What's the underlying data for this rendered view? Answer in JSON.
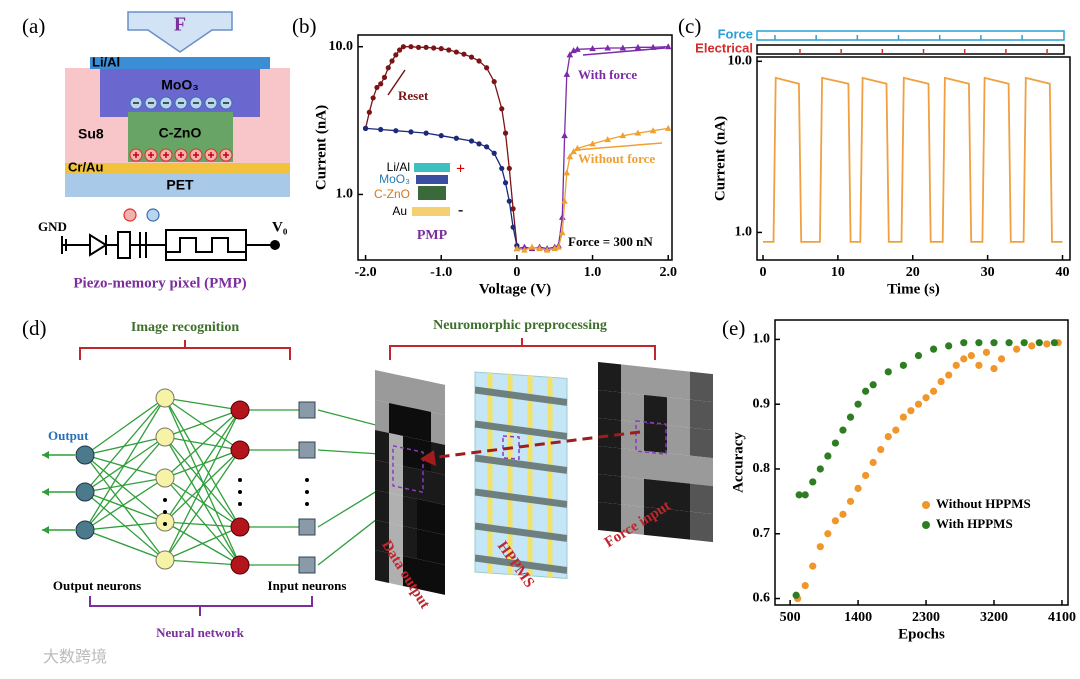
{
  "panel_labels": [
    "(a)",
    "(b)",
    "(c)",
    "(d)",
    "(e)"
  ],
  "device": {
    "force": "F",
    "layers": {
      "top_electrode": "Li/Al",
      "memory": "MoO₃",
      "insulator": "Su8",
      "piezo": "C-ZnO",
      "bottom_electrode": "Cr/Au",
      "substrate": "PET"
    },
    "circuit": {
      "ground": "GND",
      "output": "V₀"
    },
    "caption": "Piezo-memory pixel (PMP)"
  },
  "chart_data": [
    {
      "type": "line",
      "xlabel": "Voltage (V)",
      "ylabel": "Current (nA)",
      "log_y": true,
      "xlim": [
        -2.1,
        2.05
      ],
      "ylim": [
        0.36,
        12
      ],
      "xticks": [
        {
          "value": -2,
          "label": "-2.0"
        },
        {
          "value": -1,
          "label": "-1.0"
        },
        0,
        {
          "value": 1,
          "label": "1.0"
        },
        {
          "value": 2,
          "label": "2.0"
        }
      ],
      "yticks": [
        {
          "value": 1,
          "label": "1.0"
        },
        {
          "value": 10,
          "label": "10.0"
        }
      ],
      "series": [
        {
          "color": "#7b1416",
          "marker": "circle",
          "x": [
            -2,
            -1.95,
            -1.9,
            -1.85,
            -1.8,
            -1.75,
            -1.7,
            -1.65,
            -1.6,
            -1.55,
            -1.5,
            -1.4,
            -1.3,
            -1.2,
            -1.1,
            -1.0,
            -0.9,
            -0.8,
            -0.7,
            -0.6,
            -0.5,
            -0.4,
            -0.3,
            -0.2,
            -0.15,
            -0.1,
            -0.05,
            0
          ],
          "values": [
            2.8,
            3.6,
            4.5,
            5.3,
            5.6,
            6.2,
            7.2,
            8.0,
            8.8,
            9.5,
            10,
            10,
            9.9,
            9.9,
            9.8,
            9.7,
            9.5,
            9.2,
            8.9,
            8.5,
            8.0,
            7.2,
            5.8,
            3.8,
            2.6,
            1.5,
            0.8,
            0.45
          ]
        },
        {
          "color": "#1c2a7a",
          "marker": "circle",
          "x": [
            -2,
            -1.8,
            -1.6,
            -1.4,
            -1.2,
            -1.0,
            -0.8,
            -0.6,
            -0.5,
            -0.4,
            -0.3,
            -0.2,
            -0.15,
            -0.1,
            -0.05,
            0
          ],
          "values": [
            2.8,
            2.75,
            2.7,
            2.65,
            2.6,
            2.5,
            2.4,
            2.3,
            2.2,
            2.1,
            1.9,
            1.5,
            1.2,
            0.9,
            0.6,
            0.45
          ]
        },
        {
          "name": "With force",
          "color": "#7b2aa8",
          "marker": "triangle",
          "x": [
            0,
            0.1,
            0.2,
            0.3,
            0.4,
            0.5,
            0.55,
            0.6,
            0.63,
            0.66,
            0.7,
            0.75,
            0.8,
            1.0,
            1.2,
            1.4,
            1.6,
            1.8,
            2.0
          ],
          "values": [
            0.43,
            0.44,
            0.43,
            0.44,
            0.43,
            0.44,
            0.45,
            0.7,
            2.5,
            6.5,
            8.8,
            9.4,
            9.6,
            9.7,
            9.8,
            9.8,
            9.9,
            9.9,
            10
          ]
        },
        {
          "name": "Without force",
          "color": "#f0a030",
          "marker": "triangle",
          "x": [
            0,
            0.1,
            0.2,
            0.3,
            0.4,
            0.5,
            0.55,
            0.6,
            0.63,
            0.66,
            0.7,
            0.75,
            0.8,
            1.0,
            1.2,
            1.4,
            1.6,
            1.8,
            2.0
          ],
          "values": [
            0.43,
            0.42,
            0.44,
            0.43,
            0.42,
            0.43,
            0.44,
            0.55,
            0.9,
            1.4,
            1.8,
            1.95,
            2.05,
            2.2,
            2.35,
            2.5,
            2.6,
            2.7,
            2.8
          ]
        }
      ],
      "annotations": [
        "Reset",
        "Force = 300 nN"
      ],
      "inset": {
        "layers": [
          "Li/Al",
          "MoO₃",
          "C-ZnO",
          "Au"
        ],
        "signs": [
          "+",
          "-"
        ],
        "label": "PMP"
      }
    },
    {
      "type": "line",
      "xlabel": "Time (s)",
      "ylabel": "Current (nA)",
      "log_y": true,
      "xlim": [
        -0.8,
        41
      ],
      "ylim": [
        0.69,
        10.6
      ],
      "xticks": [
        0,
        10,
        20,
        30,
        40
      ],
      "yticks": [
        {
          "value": 1,
          "label": "1.0"
        },
        {
          "value": 10,
          "label": "10.0"
        }
      ],
      "signals": [
        "Force",
        "Electrical"
      ],
      "series": [
        {
          "color": "#f0a040",
          "x": [
            0,
            1.4,
            1.7,
            4.8,
            5.1,
            7.6,
            7.9,
            11.4,
            11.7,
            13.0,
            13.3,
            16.5,
            16.8,
            18.5,
            18.8,
            22.1,
            22.4,
            24.0,
            24.3,
            27.5,
            27.8,
            29.3,
            29.6,
            32.8,
            33.1,
            34.8,
            35.1,
            38.3,
            38.6,
            40
          ],
          "values": [
            0.88,
            0.88,
            8.0,
            7.4,
            0.88,
            0.88,
            8.0,
            7.4,
            0.88,
            0.88,
            8.0,
            7.4,
            0.88,
            0.88,
            8.0,
            7.4,
            0.88,
            0.88,
            8.0,
            7.4,
            0.88,
            0.88,
            8.0,
            7.4,
            0.88,
            0.88,
            8.0,
            7.4,
            0.88,
            0.88
          ]
        }
      ]
    },
    {
      "type": "scatter",
      "xlabel": "Epochs",
      "ylabel": "Accuracy",
      "xlim": [
        300,
        4180
      ],
      "ylim": [
        0.59,
        1.03
      ],
      "xticks": [
        500,
        1400,
        2300,
        3200,
        4100
      ],
      "yticks": [
        0.6,
        0.7,
        0.8,
        0.9,
        {
          "value": 1,
          "label": "1.0"
        }
      ],
      "legend": "lower right",
      "series": [
        {
          "name": "Without HPPMS",
          "color": "#f0962a",
          "x": [
            600,
            700,
            800,
            900,
            1000,
            1100,
            1200,
            1300,
            1400,
            1500,
            1600,
            1700,
            1800,
            1900,
            2000,
            2100,
            2200,
            2300,
            2400,
            2500,
            2600,
            2700,
            2800,
            2900,
            3000,
            3100,
            3200,
            3300,
            3500,
            3700,
            3900,
            4050
          ],
          "values": [
            0.6,
            0.62,
            0.65,
            0.68,
            0.7,
            0.72,
            0.73,
            0.75,
            0.77,
            0.79,
            0.81,
            0.83,
            0.85,
            0.86,
            0.88,
            0.89,
            0.9,
            0.91,
            0.92,
            0.935,
            0.945,
            0.96,
            0.97,
            0.975,
            0.96,
            0.98,
            0.955,
            0.97,
            0.985,
            0.99,
            0.993,
            0.995
          ]
        },
        {
          "name": "With HPPMS",
          "color": "#2e7d22",
          "x": [
            580,
            620,
            700,
            800,
            900,
            1000,
            1100,
            1200,
            1300,
            1400,
            1500,
            1600,
            1800,
            2000,
            2200,
            2400,
            2600,
            2800,
            3000,
            3200,
            3400,
            3600,
            3800,
            4000
          ],
          "values": [
            0.605,
            0.76,
            0.76,
            0.78,
            0.8,
            0.82,
            0.84,
            0.86,
            0.88,
            0.9,
            0.92,
            0.93,
            0.95,
            0.96,
            0.975,
            0.985,
            0.99,
            0.995,
            0.995,
            0.995,
            0.995,
            0.995,
            0.995,
            0.995
          ]
        }
      ]
    }
  ],
  "network": {
    "sections": [
      "Image recognition",
      "Neuromorphic preprocessing"
    ],
    "output": "Output",
    "output_neurons": "Output neurons",
    "input_neurons": "Input neurons",
    "name": "Neural network",
    "panels": [
      "Data output",
      "HPPMS",
      "Force input"
    ]
  },
  "watermark": "大数跨境"
}
